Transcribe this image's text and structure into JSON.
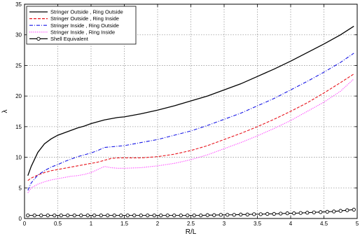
{
  "chart_data": {
    "type": "line",
    "title": "",
    "xlabel": "R/L",
    "ylabel": "λ",
    "xlim": [
      0,
      5
    ],
    "ylim": [
      0,
      35
    ],
    "xticks": [
      0,
      0.5,
      1,
      1.5,
      2,
      2.5,
      3,
      3.5,
      4,
      4.5,
      5
    ],
    "xtick_labels": [
      "0",
      "0.5",
      "1",
      "1.5",
      "2",
      "2.5",
      "3",
      "3.5",
      "4",
      "4.5",
      "5"
    ],
    "yticks": [
      0,
      5,
      10,
      15,
      20,
      25,
      30,
      35
    ],
    "ytick_labels": [
      "0",
      "5",
      "10",
      "15",
      "20",
      "25",
      "30",
      "35"
    ],
    "grid": true,
    "legend_position": "top-left",
    "series": [
      {
        "name": "Stringer Outside , Ring Outside",
        "color": "#000000",
        "style": "solid",
        "x": [
          0.05,
          0.1,
          0.2,
          0.3,
          0.4,
          0.5,
          0.6,
          0.7,
          0.8,
          0.9,
          1.0,
          1.1,
          1.2,
          1.3,
          1.4,
          1.5,
          1.75,
          2.0,
          2.25,
          2.5,
          2.75,
          3.0,
          3.25,
          3.5,
          3.75,
          4.0,
          4.25,
          4.5,
          4.75,
          4.95
        ],
        "y": [
          7.0,
          8.5,
          10.8,
          12.2,
          13.0,
          13.6,
          14.0,
          14.4,
          14.8,
          15.1,
          15.5,
          15.8,
          16.1,
          16.3,
          16.5,
          16.6,
          17.1,
          17.7,
          18.4,
          19.2,
          20.0,
          21.0,
          22.0,
          23.2,
          24.4,
          25.7,
          27.1,
          28.5,
          30.0,
          31.4
        ]
      },
      {
        "name": "Stringer Outside , Ring Inside",
        "color": "#e8141c",
        "style": "dashed",
        "x": [
          0.05,
          0.1,
          0.2,
          0.3,
          0.4,
          0.5,
          0.6,
          0.7,
          0.8,
          0.9,
          1.0,
          1.1,
          1.2,
          1.3,
          1.4,
          1.5,
          1.75,
          2.0,
          2.25,
          2.5,
          2.75,
          3.0,
          3.25,
          3.5,
          3.75,
          4.0,
          4.25,
          4.5,
          4.75,
          4.95
        ],
        "y": [
          6.2,
          6.6,
          7.1,
          7.5,
          7.8,
          8.0,
          8.2,
          8.4,
          8.6,
          8.8,
          9.0,
          9.2,
          9.5,
          9.8,
          9.9,
          9.9,
          9.9,
          10.1,
          10.5,
          11.1,
          11.9,
          12.9,
          13.9,
          15.0,
          16.2,
          17.5,
          18.9,
          20.5,
          22.2,
          23.6
        ]
      },
      {
        "name": "Stringer Inside , Ring Outside",
        "color": "#1414e6",
        "style": "dashdot",
        "x": [
          0.05,
          0.1,
          0.2,
          0.3,
          0.4,
          0.5,
          0.6,
          0.7,
          0.8,
          0.9,
          1.0,
          1.1,
          1.2,
          1.3,
          1.4,
          1.5,
          1.75,
          2.0,
          2.25,
          2.5,
          2.75,
          3.0,
          3.25,
          3.5,
          3.75,
          4.0,
          4.25,
          4.5,
          4.75,
          4.95
        ],
        "y": [
          4.6,
          5.8,
          7.1,
          7.8,
          8.4,
          8.8,
          9.3,
          9.7,
          10.1,
          10.4,
          10.7,
          11.1,
          11.6,
          11.7,
          11.8,
          11.9,
          12.4,
          12.9,
          13.6,
          14.3,
          15.2,
          16.2,
          17.2,
          18.4,
          19.6,
          21.0,
          22.4,
          23.9,
          25.5,
          27.0
        ]
      },
      {
        "name": "Stringer Inside , Ring Inside",
        "color": "#ff33ff",
        "style": "dotted",
        "x": [
          0.05,
          0.1,
          0.2,
          0.3,
          0.4,
          0.5,
          0.6,
          0.7,
          0.8,
          0.9,
          1.0,
          1.1,
          1.2,
          1.3,
          1.4,
          1.5,
          1.75,
          2.0,
          2.25,
          2.5,
          2.75,
          3.0,
          3.25,
          3.5,
          3.75,
          4.0,
          4.25,
          4.5,
          4.75,
          4.95
        ],
        "y": [
          4.2,
          5.0,
          5.6,
          6.0,
          6.3,
          6.5,
          6.7,
          6.9,
          7.0,
          7.2,
          7.5,
          8.0,
          8.5,
          8.3,
          8.2,
          8.2,
          8.3,
          8.6,
          9.0,
          9.6,
          10.4,
          11.4,
          12.4,
          13.5,
          14.7,
          16.0,
          17.5,
          19.0,
          20.8,
          22.8
        ]
      },
      {
        "name": "Shell Equivalent",
        "color": "#000000",
        "style": "solid-circle",
        "x": [
          0.05,
          0.15,
          0.25,
          0.35,
          0.45,
          0.55,
          0.65,
          0.75,
          0.85,
          0.95,
          1.05,
          1.15,
          1.25,
          1.35,
          1.45,
          1.55,
          1.65,
          1.75,
          1.85,
          1.95,
          2.05,
          2.15,
          2.25,
          2.35,
          2.45,
          2.55,
          2.65,
          2.75,
          2.85,
          2.95,
          3.05,
          3.15,
          3.25,
          3.35,
          3.45,
          3.55,
          3.65,
          3.75,
          3.85,
          3.95,
          4.05,
          4.15,
          4.25,
          4.35,
          4.45,
          4.55,
          4.65,
          4.75,
          4.85,
          4.95
        ],
        "y": [
          0.5,
          0.5,
          0.5,
          0.5,
          0.5,
          0.5,
          0.5,
          0.5,
          0.5,
          0.5,
          0.5,
          0.5,
          0.5,
          0.5,
          0.5,
          0.5,
          0.5,
          0.5,
          0.5,
          0.5,
          0.5,
          0.5,
          0.5,
          0.5,
          0.5,
          0.5,
          0.5,
          0.55,
          0.55,
          0.6,
          0.6,
          0.6,
          0.65,
          0.65,
          0.7,
          0.7,
          0.75,
          0.75,
          0.8,
          0.85,
          0.85,
          0.9,
          0.95,
          1.0,
          1.05,
          1.1,
          1.15,
          1.25,
          1.35,
          1.45
        ]
      }
    ]
  }
}
